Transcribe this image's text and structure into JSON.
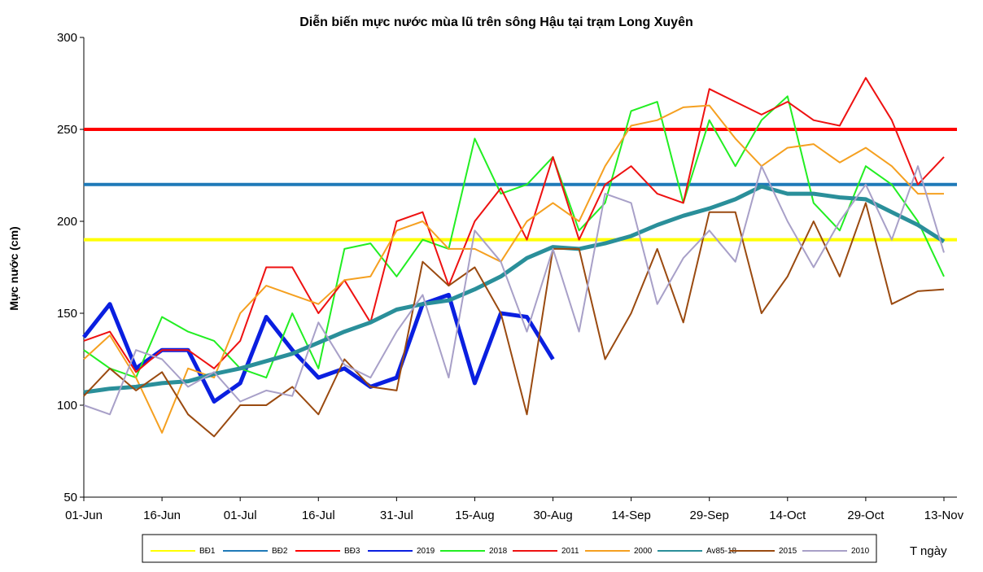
{
  "chart_data": {
    "type": "line",
    "title": "Diễn biến mực nước mùa lũ trên sông Hậu tại trạm Long Xuyên",
    "y_label": "Mực nước (cm)",
    "x_label": "T ngày",
    "xlim": [
      0,
      167.5
    ],
    "ylim": [
      50,
      300
    ],
    "yticks": [
      50,
      100,
      150,
      200,
      250,
      300
    ],
    "xticks": [
      {
        "value": 0,
        "label": "01-Jun"
      },
      {
        "value": 15,
        "label": "16-Jun"
      },
      {
        "value": 30,
        "label": "01-Jul"
      },
      {
        "value": 45,
        "label": "16-Jul"
      },
      {
        "value": 60,
        "label": "31-Jul"
      },
      {
        "value": 75,
        "label": "15-Aug"
      },
      {
        "value": 90,
        "label": "30-Aug"
      },
      {
        "value": 105,
        "label": "14-Sep"
      },
      {
        "value": 120,
        "label": "29-Sep"
      },
      {
        "value": 135,
        "label": "14-Oct"
      },
      {
        "value": 150,
        "label": "29-Oct"
      },
      {
        "value": 165,
        "label": "13-Nov"
      }
    ],
    "x": [
      0,
      5,
      10,
      15,
      20,
      25,
      30,
      35,
      40,
      45,
      50,
      55,
      60,
      65,
      70,
      75,
      80,
      85,
      90,
      95,
      100,
      105,
      110,
      115,
      120,
      125,
      130,
      135,
      140,
      145,
      150,
      155,
      160,
      165
    ],
    "series": [
      {
        "name": "BĐ1",
        "color": "#ffff00",
        "value": 190
      },
      {
        "name": "BĐ2",
        "color": "#1f7ab8",
        "value": 220
      },
      {
        "name": "BĐ3",
        "color": "#ff0000",
        "value": 250
      },
      {
        "name": "2019",
        "color": "#0a1fe0",
        "values": [
          137,
          155,
          120,
          130,
          130,
          102,
          112,
          148,
          130,
          115,
          120,
          110,
          115,
          155,
          160,
          112,
          150,
          148,
          125,
          null,
          null,
          null,
          null,
          null,
          null,
          null,
          null,
          null,
          null,
          null,
          null,
          null,
          null,
          null
        ]
      },
      {
        "name": "2018",
        "color": "#22ee22",
        "values": [
          130,
          120,
          115,
          148,
          140,
          135,
          120,
          115,
          150,
          120,
          185,
          188,
          170,
          190,
          185,
          245,
          215,
          220,
          235,
          195,
          210,
          260,
          265,
          210,
          255,
          230,
          255,
          268,
          210,
          195,
          230,
          220,
          200,
          170
        ]
      },
      {
        "name": "2011",
        "color": "#ee1111",
        "values": [
          135,
          140,
          118,
          130,
          130,
          120,
          135,
          175,
          175,
          150,
          168,
          145,
          200,
          205,
          165,
          200,
          218,
          190,
          235,
          190,
          220,
          230,
          215,
          210,
          272,
          265,
          258,
          265,
          255,
          252,
          278,
          255,
          220,
          235
        ]
      },
      {
        "name": "2000",
        "color": "#f5a020",
        "values": [
          125,
          138,
          115,
          85,
          120,
          115,
          150,
          165,
          160,
          155,
          168,
          170,
          195,
          200,
          185,
          185,
          178,
          200,
          210,
          200,
          230,
          252,
          255,
          262,
          263,
          245,
          230,
          240,
          242,
          232,
          240,
          230,
          215,
          215
        ]
      },
      {
        "name": "Av85-18",
        "color": "#2a8f9a",
        "values": [
          107,
          109,
          110,
          112,
          113,
          117,
          120,
          124,
          128,
          134,
          140,
          145,
          152,
          155,
          157,
          163,
          170,
          180,
          186,
          185,
          188,
          192,
          198,
          203,
          207,
          212,
          219,
          215,
          215,
          213,
          212,
          205,
          198,
          189
        ]
      },
      {
        "name": "2015",
        "color": "#9a4a10",
        "values": [
          105,
          120,
          108,
          118,
          95,
          83,
          100,
          100,
          110,
          95,
          125,
          110,
          108,
          178,
          165,
          175,
          150,
          95,
          185,
          185,
          125,
          150,
          185,
          145,
          205,
          205,
          150,
          170,
          200,
          170,
          210,
          155,
          162,
          163
        ]
      },
      {
        "name": "2010",
        "color": "#a8a0c8",
        "values": [
          100,
          95,
          130,
          125,
          110,
          118,
          102,
          108,
          105,
          145,
          122,
          115,
          140,
          160,
          115,
          195,
          178,
          140,
          185,
          140,
          215,
          210,
          155,
          180,
          195,
          178,
          230,
          200,
          175,
          200,
          220,
          190,
          230,
          183
        ]
      }
    ]
  }
}
